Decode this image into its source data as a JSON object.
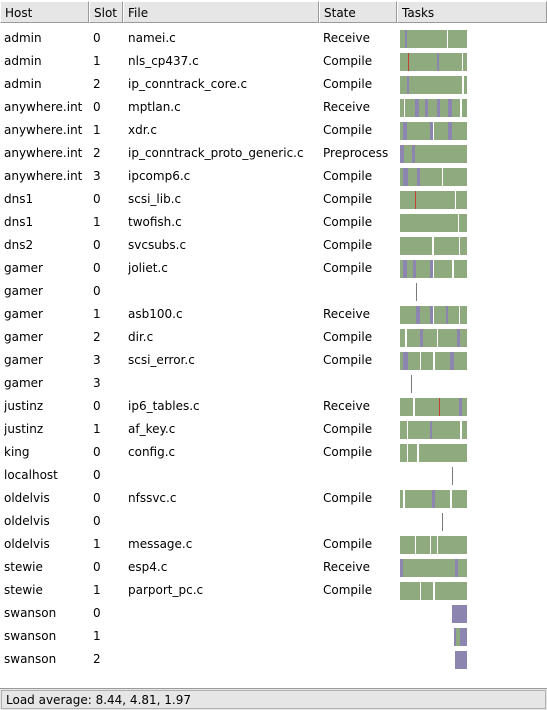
{
  "columns": {
    "host": "Host",
    "slot": "Slot",
    "file": "File",
    "state": "State",
    "tasks": "Tasks"
  },
  "colors": {
    "compile": "#8faa7e",
    "receive": "#8b85b0",
    "other": "#c04030",
    "gap": "#ffffff",
    "line": "#7a7a7a"
  },
  "rows": [
    {
      "host": "admin",
      "slot": "0",
      "file": "namei.c",
      "state": "Receive",
      "tasks": [
        [
          "c",
          0,
          0.08
        ],
        [
          "r",
          0.08,
          0.11
        ],
        [
          "c",
          0.11,
          0.7
        ],
        [
          "w",
          0.7,
          0.72
        ],
        [
          "c",
          0.72,
          1.0
        ]
      ]
    },
    {
      "host": "admin",
      "slot": "1",
      "file": "nls_cp437.c",
      "state": "Compile",
      "tasks": [
        [
          "c",
          0,
          0.12
        ],
        [
          "o",
          0.12,
          0.14
        ],
        [
          "c",
          0.14,
          0.55
        ],
        [
          "r",
          0.55,
          0.58
        ],
        [
          "c",
          0.58,
          0.92
        ],
        [
          "w",
          0.92,
          0.94
        ],
        [
          "c",
          0.94,
          1.0
        ]
      ]
    },
    {
      "host": "admin",
      "slot": "2",
      "file": "ip_conntrack_core.c",
      "state": "Compile",
      "tasks": [
        [
          "c",
          0,
          0.1
        ],
        [
          "r",
          0.1,
          0.13
        ],
        [
          "c",
          0.13,
          0.93
        ],
        [
          "w",
          0.93,
          0.95
        ],
        [
          "c",
          0.95,
          1.0
        ]
      ]
    },
    {
      "host": "anywhere.int",
      "slot": "0",
      "file": "mptlan.c",
      "state": "Receive",
      "tasks": [
        [
          "c",
          0,
          0.06
        ],
        [
          "w",
          0.06,
          0.08
        ],
        [
          "c",
          0.08,
          0.22
        ],
        [
          "r",
          0.22,
          0.28
        ],
        [
          "c",
          0.28,
          0.38
        ],
        [
          "r",
          0.38,
          0.42
        ],
        [
          "c",
          0.42,
          0.55
        ],
        [
          "r",
          0.55,
          0.6
        ],
        [
          "c",
          0.6,
          0.72
        ],
        [
          "r",
          0.72,
          0.78
        ],
        [
          "c",
          0.78,
          0.9
        ],
        [
          "w",
          0.9,
          0.92
        ],
        [
          "c",
          0.92,
          1.0
        ]
      ]
    },
    {
      "host": "anywhere.int",
      "slot": "1",
      "file": "xdr.c",
      "state": "Compile",
      "tasks": [
        [
          "c",
          0,
          0.04
        ],
        [
          "r",
          0.04,
          0.1
        ],
        [
          "c",
          0.1,
          0.45
        ],
        [
          "r",
          0.45,
          0.5
        ],
        [
          "c",
          0.5,
          0.72
        ],
        [
          "r",
          0.72,
          0.78
        ],
        [
          "c",
          0.78,
          1.0
        ]
      ]
    },
    {
      "host": "anywhere.int",
      "slot": "2",
      "file": "ip_conntrack_proto_generic.c",
      "state": "Preprocess",
      "tasks": [
        [
          "r",
          0,
          0.06
        ],
        [
          "c",
          0.06,
          0.18
        ],
        [
          "r",
          0.18,
          0.22
        ],
        [
          "c",
          0.22,
          1.0
        ]
      ]
    },
    {
      "host": "anywhere.int",
      "slot": "3",
      "file": "ipcomp6.c",
      "state": "Compile",
      "tasks": [
        [
          "c",
          0,
          0.05
        ],
        [
          "r",
          0.05,
          0.12
        ],
        [
          "c",
          0.12,
          0.25
        ],
        [
          "r",
          0.25,
          0.3
        ],
        [
          "c",
          0.3,
          0.62
        ],
        [
          "w",
          0.62,
          0.64
        ],
        [
          "c",
          0.64,
          1.0
        ]
      ]
    },
    {
      "host": "dns1",
      "slot": "0",
      "file": "scsi_lib.c",
      "state": "Compile",
      "tasks": [
        [
          "c",
          0,
          0.22
        ],
        [
          "o",
          0.22,
          0.24
        ],
        [
          "c",
          0.24,
          0.82
        ],
        [
          "w",
          0.82,
          0.84
        ],
        [
          "c",
          0.84,
          1.0
        ]
      ]
    },
    {
      "host": "dns1",
      "slot": "1",
      "file": "twofish.c",
      "state": "Compile",
      "tasks": [
        [
          "c",
          0,
          0.86
        ],
        [
          "w",
          0.86,
          0.88
        ],
        [
          "c",
          0.88,
          1.0
        ]
      ]
    },
    {
      "host": "dns2",
      "slot": "0",
      "file": "svcsubs.c",
      "state": "Compile",
      "tasks": [
        [
          "c",
          0,
          0.48
        ],
        [
          "w",
          0.48,
          0.5
        ],
        [
          "c",
          0.5,
          0.88
        ],
        [
          "w",
          0.88,
          0.9
        ],
        [
          "c",
          0.9,
          1.0
        ]
      ]
    },
    {
      "host": "gamer",
      "slot": "0",
      "file": "joliet.c",
      "state": "Compile",
      "tasks": [
        [
          "c",
          0,
          0.05
        ],
        [
          "r",
          0.05,
          0.1
        ],
        [
          "c",
          0.1,
          0.2
        ],
        [
          "r",
          0.2,
          0.24
        ],
        [
          "c",
          0.24,
          0.45
        ],
        [
          "r",
          0.45,
          0.5
        ],
        [
          "c",
          0.5,
          0.78
        ],
        [
          "w",
          0.78,
          0.8
        ],
        [
          "c",
          0.8,
          1.0
        ]
      ]
    },
    {
      "host": "gamer",
      "slot": "0",
      "file": "",
      "state": "",
      "line": 0.24
    },
    {
      "host": "gamer",
      "slot": "1",
      "file": "asb100.c",
      "state": "Receive",
      "tasks": [
        [
          "c",
          0,
          0.24
        ],
        [
          "r",
          0.24,
          0.3
        ],
        [
          "c",
          0.3,
          0.45
        ],
        [
          "r",
          0.45,
          0.5
        ],
        [
          "c",
          0.5,
          0.68
        ],
        [
          "r",
          0.68,
          0.72
        ],
        [
          "c",
          0.72,
          0.88
        ],
        [
          "w",
          0.88,
          0.9
        ],
        [
          "c",
          0.9,
          1.0
        ]
      ]
    },
    {
      "host": "gamer",
      "slot": "2",
      "file": "dir.c",
      "state": "Compile",
      "tasks": [
        [
          "c",
          0,
          0.08
        ],
        [
          "w",
          0.08,
          0.1
        ],
        [
          "c",
          0.1,
          0.3
        ],
        [
          "r",
          0.3,
          0.34
        ],
        [
          "c",
          0.34,
          0.55
        ],
        [
          "w",
          0.55,
          0.57
        ],
        [
          "c",
          0.57,
          0.85
        ],
        [
          "r",
          0.85,
          0.9
        ],
        [
          "c",
          0.9,
          1.0
        ]
      ]
    },
    {
      "host": "gamer",
      "slot": "3",
      "file": "scsi_error.c",
      "state": "Compile",
      "tasks": [
        [
          "c",
          0,
          0.05
        ],
        [
          "r",
          0.05,
          0.12
        ],
        [
          "c",
          0.12,
          0.3
        ],
        [
          "w",
          0.3,
          0.32
        ],
        [
          "c",
          0.32,
          0.5
        ],
        [
          "w",
          0.5,
          0.52
        ],
        [
          "c",
          0.52,
          0.75
        ],
        [
          "r",
          0.75,
          0.8
        ],
        [
          "c",
          0.8,
          1.0
        ]
      ]
    },
    {
      "host": "gamer",
      "slot": "3",
      "file": "",
      "state": "",
      "line": 0.17
    },
    {
      "host": "justinz",
      "slot": "0",
      "file": "ip6_tables.c",
      "state": "Receive",
      "tasks": [
        [
          "c",
          0,
          0.2
        ],
        [
          "w",
          0.2,
          0.22
        ],
        [
          "c",
          0.22,
          0.58
        ],
        [
          "o",
          0.58,
          0.6
        ],
        [
          "c",
          0.6,
          0.88
        ],
        [
          "r",
          0.88,
          0.92
        ],
        [
          "c",
          0.92,
          1.0
        ]
      ]
    },
    {
      "host": "justinz",
      "slot": "1",
      "file": "af_key.c",
      "state": "Compile",
      "tasks": [
        [
          "c",
          0,
          0.1
        ],
        [
          "w",
          0.1,
          0.12
        ],
        [
          "c",
          0.12,
          0.45
        ],
        [
          "r",
          0.45,
          0.48
        ],
        [
          "c",
          0.48,
          0.9
        ],
        [
          "w",
          0.9,
          0.92
        ],
        [
          "c",
          0.92,
          1.0
        ]
      ]
    },
    {
      "host": "king",
      "slot": "0",
      "file": "config.c",
      "state": "Compile",
      "tasks": [
        [
          "c",
          0,
          0.1
        ],
        [
          "w",
          0.1,
          0.12
        ],
        [
          "c",
          0.12,
          0.26
        ],
        [
          "w",
          0.26,
          0.28
        ],
        [
          "c",
          0.28,
          1.0
        ]
      ]
    },
    {
      "host": "localhost",
      "slot": "0",
      "file": "",
      "state": "",
      "line": 0.78
    },
    {
      "host": "oldelvis",
      "slot": "0",
      "file": "nfssvc.c",
      "state": "Compile",
      "tasks": [
        [
          "c",
          0,
          0.05
        ],
        [
          "w",
          0.05,
          0.07
        ],
        [
          "c",
          0.07,
          0.48
        ],
        [
          "r",
          0.48,
          0.52
        ],
        [
          "c",
          0.52,
          0.75
        ],
        [
          "w",
          0.75,
          0.77
        ],
        [
          "c",
          0.77,
          1.0
        ]
      ]
    },
    {
      "host": "oldelvis",
      "slot": "0",
      "file": "",
      "state": "",
      "line": 0.62
    },
    {
      "host": "oldelvis",
      "slot": "1",
      "file": "message.c",
      "state": "Compile",
      "tasks": [
        [
          "c",
          0,
          0.22
        ],
        [
          "w",
          0.22,
          0.24
        ],
        [
          "c",
          0.24,
          0.45
        ],
        [
          "w",
          0.45,
          0.47
        ],
        [
          "c",
          0.47,
          0.55
        ],
        [
          "w",
          0.55,
          0.57
        ],
        [
          "c",
          0.57,
          1.0
        ]
      ]
    },
    {
      "host": "stewie",
      "slot": "0",
      "file": "esp4.c",
      "state": "Receive",
      "tasks": [
        [
          "r",
          0,
          0.04
        ],
        [
          "c",
          0.04,
          0.82
        ],
        [
          "r",
          0.82,
          0.86
        ],
        [
          "c",
          0.86,
          1.0
        ]
      ]
    },
    {
      "host": "stewie",
      "slot": "1",
      "file": "parport_pc.c",
      "state": "Compile",
      "tasks": [
        [
          "c",
          0,
          0.3
        ],
        [
          "w",
          0.3,
          0.32
        ],
        [
          "c",
          0.32,
          0.5
        ],
        [
          "w",
          0.5,
          0.52
        ],
        [
          "c",
          0.52,
          1.0
        ]
      ]
    },
    {
      "host": "swanson",
      "slot": "0",
      "file": "",
      "state": "",
      "tasks": [
        [
          "r",
          0.78,
          1.0
        ]
      ]
    },
    {
      "host": "swanson",
      "slot": "1",
      "file": "",
      "state": "",
      "tasks": [
        [
          "r",
          0.8,
          0.84
        ],
        [
          "c",
          0.84,
          0.9
        ],
        [
          "r",
          0.9,
          1.0
        ]
      ]
    },
    {
      "host": "swanson",
      "slot": "2",
      "file": "",
      "state": "",
      "tasks": [
        [
          "r",
          0.82,
          1.0
        ]
      ]
    }
  ],
  "status": {
    "load": "Load average: 8.44, 4.81, 1.97"
  }
}
